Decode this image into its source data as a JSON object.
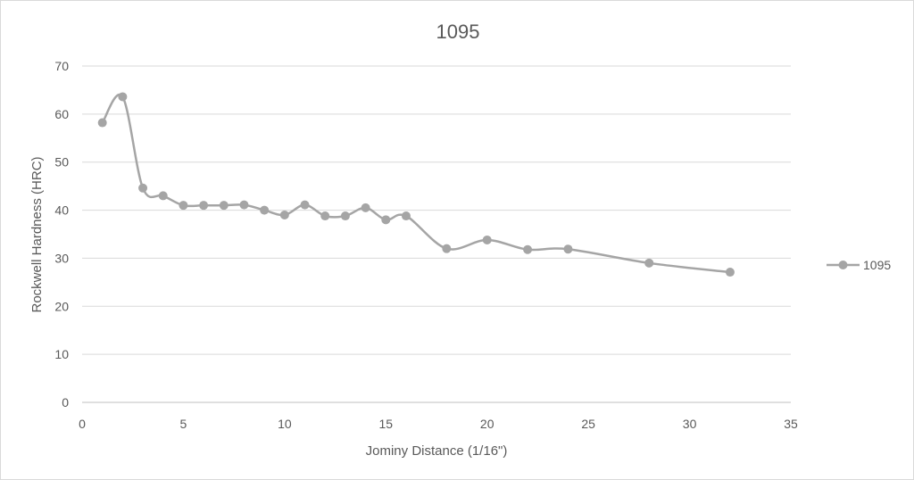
{
  "chart_data": {
    "type": "line",
    "title": "1095",
    "xlabel": "Jominy Distance (1/16\")",
    "ylabel": "Rockwell Hardness (HRC)",
    "xlim": [
      0,
      35
    ],
    "ylim": [
      0,
      70
    ],
    "x_ticks": [
      0,
      5,
      10,
      15,
      20,
      25,
      30,
      35
    ],
    "y_ticks": [
      0,
      10,
      20,
      30,
      40,
      50,
      60,
      70
    ],
    "grid": "horizontal",
    "smoothed": true,
    "legend_position": "right",
    "series": [
      {
        "name": "1095",
        "color": "#a5a5a5",
        "x": [
          1,
          2,
          3,
          4,
          5,
          6,
          7,
          8,
          9,
          10,
          11,
          12,
          13,
          14,
          15,
          16,
          18,
          20,
          22,
          24,
          28,
          32
        ],
        "y": [
          58.2,
          63.6,
          44.6,
          43,
          41,
          41,
          41,
          41.1,
          40,
          39,
          41.1,
          38.8,
          38.8,
          40.5,
          38,
          38.8,
          32,
          33.8,
          31.8,
          31.9,
          29,
          27.1
        ]
      }
    ]
  }
}
